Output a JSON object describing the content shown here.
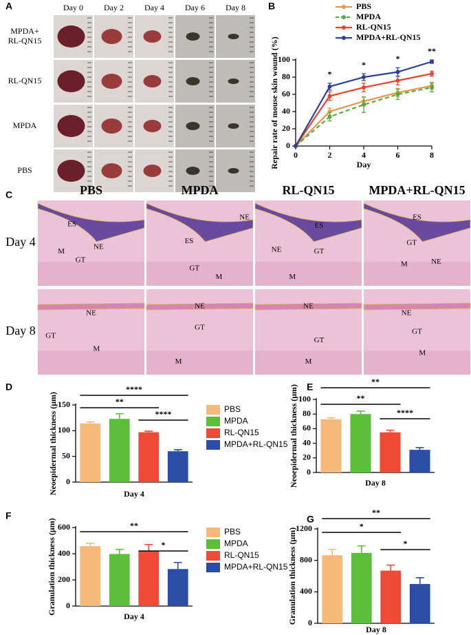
{
  "photo_panel": {
    "label": "A",
    "columns": [
      "Day 0",
      "Day 2",
      "Day 4",
      "Day 6",
      "Day 8"
    ],
    "rows": [
      [
        "MPDA+",
        "RL-QN15"
      ],
      [
        "RL-QN15"
      ],
      [
        "MPDA"
      ],
      [
        "PBS"
      ]
    ]
  },
  "histology_panel": {
    "label": "C",
    "columns": [
      "PBS",
      "MPDA",
      "RL-QN15",
      "MPDA+RL-QN15"
    ],
    "rows": [
      "Day 4",
      "Day 8"
    ],
    "annotations": [
      [
        [
          "ES",
          "M",
          "GT",
          "NE"
        ],
        [
          "ES",
          "NE",
          "GT",
          "M"
        ],
        [
          "ES",
          "NE",
          "GT",
          "M"
        ],
        [
          "ES",
          "GT",
          "M",
          "NE"
        ]
      ],
      [
        [
          "NE",
          "GT",
          "M"
        ],
        [
          "NE",
          "GT",
          "M"
        ],
        [
          "NE",
          "GT",
          "M"
        ],
        [
          "NE",
          "GT",
          "M"
        ]
      ]
    ]
  },
  "chart_data": [
    {
      "type": "line",
      "label": "B",
      "ylabel": "Repair rate of mouse skin wound (%)",
      "xlabel": "Day",
      "x": [
        0,
        2,
        4,
        6,
        8
      ],
      "xlim": [
        0,
        8
      ],
      "xticks": [
        0,
        2,
        4,
        6,
        8
      ],
      "ylim": [
        0,
        100
      ],
      "yticks": [
        0,
        20,
        40,
        60,
        80,
        100
      ],
      "series": [
        {
          "name": "PBS",
          "color": "#e8964a",
          "dash": false,
          "values": [
            0,
            40,
            52,
            62,
            70
          ],
          "errors": [
            0,
            4,
            5,
            5,
            4
          ]
        },
        {
          "name": "MPDA",
          "color": "#4fae3a",
          "dash": true,
          "values": [
            0,
            34,
            48,
            60,
            68
          ],
          "errors": [
            0,
            5,
            9,
            6,
            5
          ]
        },
        {
          "name": "RL-QN15",
          "color": "#e8432b",
          "dash": false,
          "values": [
            0,
            58,
            68,
            76,
            84
          ],
          "errors": [
            0,
            5,
            5,
            5,
            3
          ]
        },
        {
          "name": "MPDA+RL-QN15",
          "color": "#2b3f9b",
          "dash": false,
          "values": [
            0,
            69,
            80,
            86,
            98
          ],
          "errors": [
            0,
            4,
            4,
            5,
            2
          ]
        }
      ],
      "annotations": [
        {
          "x": 2,
          "text": "*"
        },
        {
          "x": 4,
          "text": "*"
        },
        {
          "x": 6,
          "text": "*"
        },
        {
          "x": 8,
          "text": "**"
        }
      ]
    },
    {
      "type": "bar",
      "label": "D",
      "ylabel": "Neoepidermal thickness (μm)",
      "xlabel": "Day 4",
      "legend": true,
      "categories": [
        "PBS",
        "MPDA",
        "RL-QN15",
        "MPDA+RL-QN15"
      ],
      "colors": [
        "#f5b97a",
        "#5cbf3a",
        "#ee4a35",
        "#2a4ea6"
      ],
      "values": [
        114,
        123,
        97,
        60
      ],
      "errors": [
        3,
        10,
        2,
        3
      ],
      "ylim": [
        0,
        150
      ],
      "yticks": [
        0,
        50,
        100,
        150
      ],
      "brackets": [
        {
          "pair": [
            0,
            3
          ],
          "text": "****"
        },
        {
          "pair": [
            0,
            2
          ],
          "text": "**"
        },
        {
          "pair": [
            2,
            3
          ],
          "text": "****"
        }
      ]
    },
    {
      "type": "bar",
      "label": "E",
      "ylabel": "Neoepidermal thickness (μm)",
      "xlabel": "Day 8",
      "legend": false,
      "colors": [
        "#f5b97a",
        "#5cbf3a",
        "#ee4a35",
        "#2a4ea6"
      ],
      "values": [
        73,
        80,
        55,
        31
      ],
      "errors": [
        2,
        4,
        3,
        3
      ],
      "ylim": [
        0,
        100
      ],
      "yticks": [
        0,
        20,
        40,
        60,
        80,
        100
      ],
      "brackets": [
        {
          "pair": [
            0,
            3
          ],
          "text": "**"
        },
        {
          "pair": [
            0,
            2
          ],
          "text": "**"
        },
        {
          "pair": [
            2,
            3
          ],
          "text": "****"
        }
      ]
    },
    {
      "type": "bar",
      "label": "F",
      "ylabel": "Granulation thickness (μm)",
      "xlabel": "Day 4",
      "legend": true,
      "categories": [
        "PBS",
        "MPDA",
        "RL-QN15",
        "MPDA+RL-QN15"
      ],
      "colors": [
        "#f5b97a",
        "#5cbf3a",
        "#ee4a35",
        "#2a4ea6"
      ],
      "values": [
        458,
        398,
        420,
        283
      ],
      "errors": [
        22,
        35,
        50,
        50
      ],
      "ylim": [
        0,
        600
      ],
      "yticks": [
        0,
        200,
        400,
        600
      ],
      "brackets": [
        {
          "pair": [
            0,
            3
          ],
          "text": "**"
        },
        {
          "pair": [
            2,
            3
          ],
          "text": "*"
        }
      ]
    },
    {
      "type": "bar",
      "label": "G",
      "ylabel": "Granulation thickness (μm)",
      "xlabel": "Day 8",
      "legend": false,
      "colors": [
        "#f5b97a",
        "#5cbf3a",
        "#ee4a35",
        "#2a4ea6"
      ],
      "values": [
        865,
        895,
        670,
        500
      ],
      "errors": [
        75,
        90,
        70,
        80
      ],
      "ylim": [
        0,
        1200
      ],
      "yticks": [
        0,
        400,
        800,
        1200
      ],
      "brackets": [
        {
          "pair": [
            0,
            3
          ],
          "text": "**"
        },
        {
          "pair": [
            0,
            2
          ],
          "text": "*"
        },
        {
          "pair": [
            2,
            3
          ],
          "text": "*"
        }
      ]
    }
  ]
}
